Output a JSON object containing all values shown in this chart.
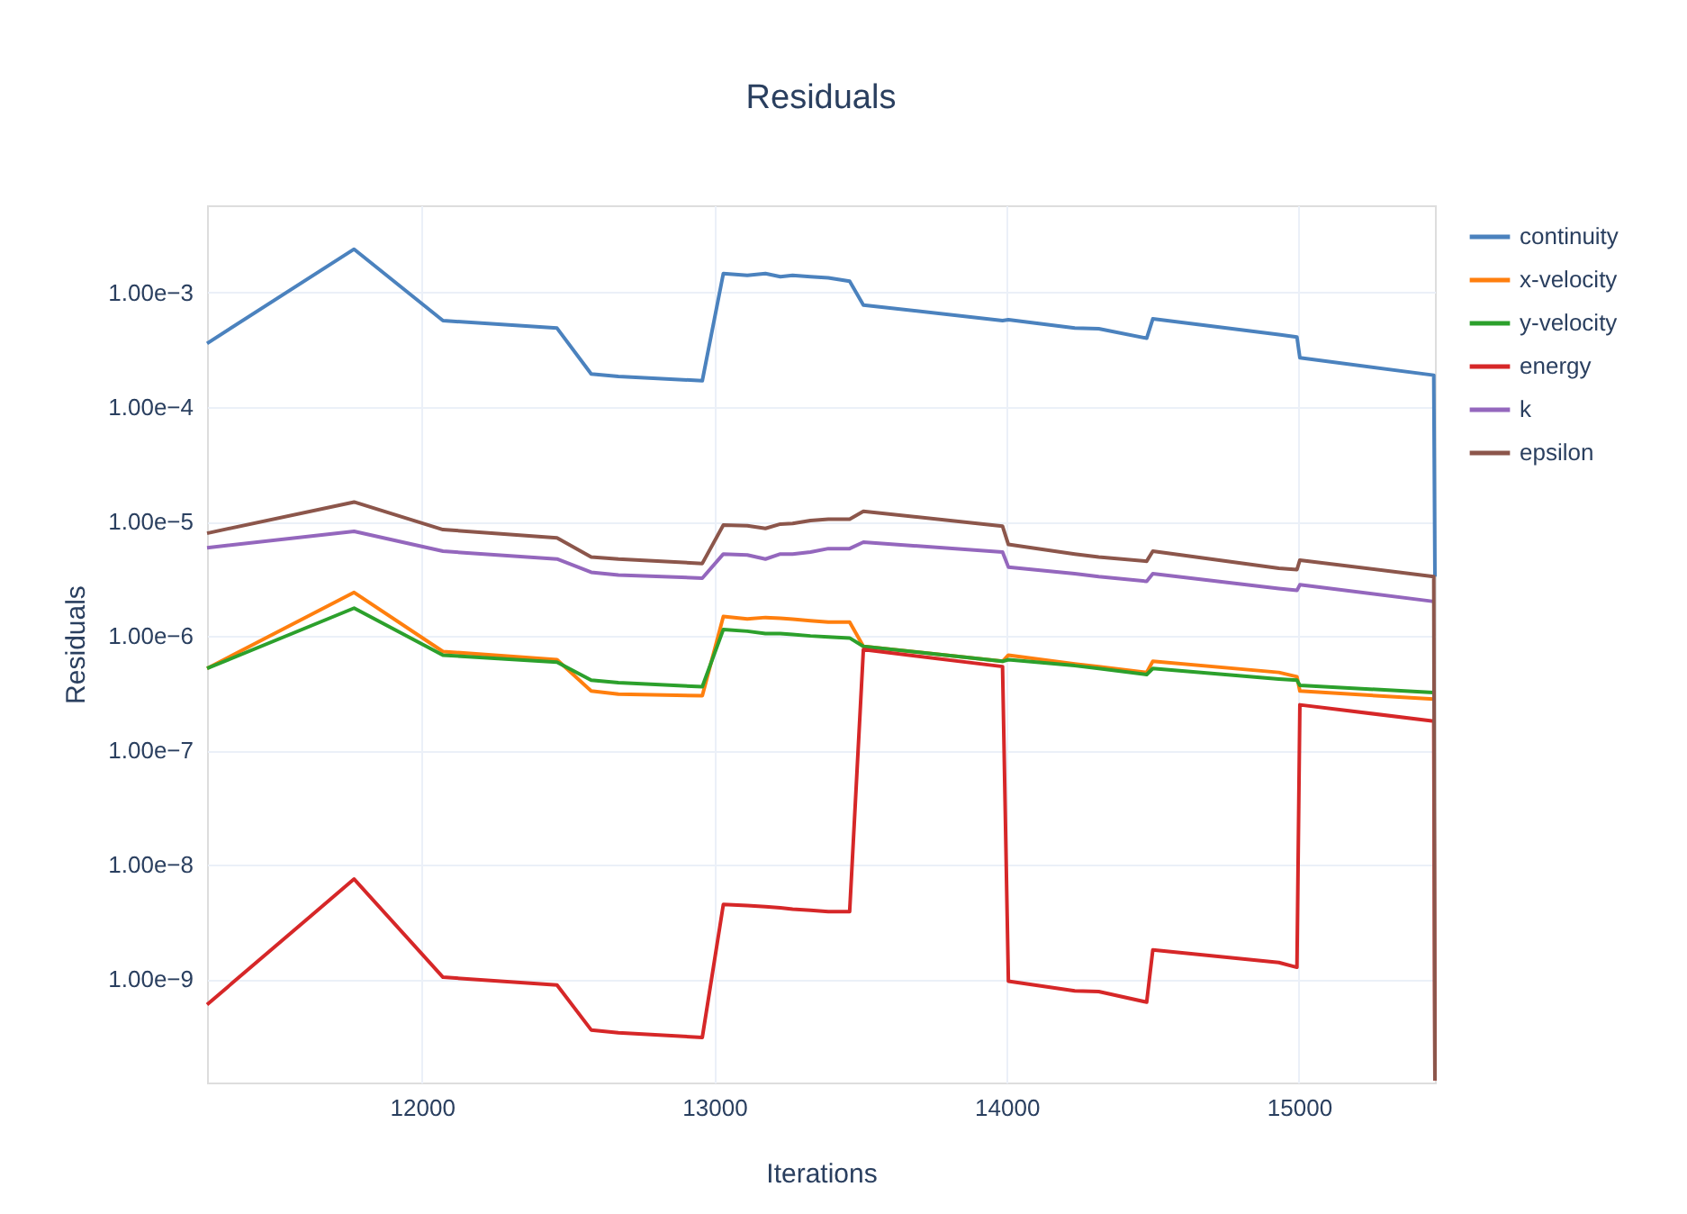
{
  "chart_data": {
    "type": "line",
    "title": "Residuals",
    "xlabel": "Iterations",
    "ylabel": "Residuals",
    "x": [
      11265,
      11768,
      12072,
      12462,
      12579,
      12672,
      12959,
      13031,
      13113,
      13175,
      13226,
      13268,
      13329,
      13390,
      13463,
      13510,
      13986,
      14006,
      14233,
      14315,
      14479,
      14500,
      14931,
      14993,
      15003,
      15461,
      15465
    ],
    "series": [
      {
        "name": "continuity",
        "color": "#4b82be",
        "values": [
          0.00036,
          0.0024,
          0.00057,
          0.00049,
          0.000195,
          0.000185,
          0.00017,
          0.00147,
          0.00142,
          0.00147,
          0.00138,
          0.00142,
          0.00138,
          0.00135,
          0.00126,
          0.00078,
          0.00057,
          0.00058,
          0.00049,
          0.000485,
          0.0004,
          0.00059,
          0.00043,
          0.00041,
          0.00027,
          0.00019,
          3.3e-06
        ]
      },
      {
        "name": "x-velocity",
        "color": "#ff7f0e",
        "values": [
          5.2e-07,
          2.4e-06,
          7.3e-07,
          6.2e-07,
          3.3e-07,
          3.1e-07,
          3e-07,
          1.48e-06,
          1.41e-06,
          1.45e-06,
          1.43e-06,
          1.4e-06,
          1.36e-06,
          1.32e-06,
          1.32e-06,
          8.1e-07,
          6e-07,
          6.8e-07,
          5.7e-07,
          5.4e-07,
          4.8e-07,
          6e-07,
          4.8e-07,
          4.4e-07,
          3.3e-07,
          2.8e-07,
          null
        ]
      },
      {
        "name": "y-velocity",
        "color": "#2ca02c",
        "values": [
          5.2e-07,
          1.75e-06,
          6.8e-07,
          5.9e-07,
          4.1e-07,
          3.9e-07,
          3.6e-07,
          1.14e-06,
          1.1e-06,
          1.05e-06,
          1.05e-06,
          1.03e-06,
          1e-06,
          9.8e-07,
          9.6e-07,
          8.1e-07,
          6e-07,
          6.2e-07,
          5.5e-07,
          5.2e-07,
          4.6e-07,
          5.2e-07,
          4.2e-07,
          4.1e-07,
          3.7e-07,
          3.2e-07,
          null
        ]
      },
      {
        "name": "energy",
        "color": "#d62728",
        "values": [
          6e-10,
          7.5e-09,
          1.04e-09,
          8.9e-10,
          3.6e-10,
          3.4e-10,
          3.1e-10,
          4.5e-09,
          4.4e-09,
          4.3e-09,
          4.2e-09,
          4.1e-09,
          4e-09,
          3.9e-09,
          3.9e-09,
          7.6e-07,
          5.4e-07,
          9.6e-10,
          7.9e-10,
          7.8e-10,
          6.3e-10,
          1.8e-09,
          1.4e-09,
          1.27e-09,
          2.5e-07,
          1.8e-07,
          1.3e-10
        ]
      },
      {
        "name": "k",
        "color": "#9467bd",
        "values": [
          5.9e-06,
          8.2e-06,
          5.5e-06,
          4.7e-06,
          3.6e-06,
          3.4e-06,
          3.2e-06,
          5.2e-06,
          5.1e-06,
          4.7e-06,
          5.2e-06,
          5.2e-06,
          5.4e-06,
          5.8e-06,
          5.8e-06,
          6.6e-06,
          5.4e-06,
          4e-06,
          3.5e-06,
          3.3e-06,
          3e-06,
          3.5e-06,
          2.6e-06,
          2.5e-06,
          2.8e-06,
          2e-06,
          null
        ]
      },
      {
        "name": "epsilon",
        "color": "#8c564b",
        "values": [
          7.9e-06,
          1.48e-05,
          8.5e-06,
          7.2e-06,
          4.9e-06,
          4.7e-06,
          4.3e-06,
          9.3e-06,
          9.2e-06,
          8.7e-06,
          9.5e-06,
          9.6e-06,
          1.02e-05,
          1.05e-05,
          1.05e-05,
          1.23e-05,
          9.1e-06,
          6.3e-06,
          5.2e-06,
          4.9e-06,
          4.5e-06,
          5.5e-06,
          3.9e-06,
          3.8e-06,
          4.6e-06,
          3.3e-06,
          1.3e-10
        ]
      }
    ],
    "xlim": [
      11265,
      15465
    ],
    "xticks": [
      12000,
      13000,
      14000,
      15000
    ],
    "ylim": [
      1.25e-10,
      0.0058
    ],
    "log": true,
    "yticks": [
      {
        "value": 1e-09,
        "label": "1.00e−9"
      },
      {
        "value": 1e-08,
        "label": "1.00e−8"
      },
      {
        "value": 1e-07,
        "label": "1.00e−7"
      },
      {
        "value": 1e-06,
        "label": "1.00e−6"
      },
      {
        "value": 1e-05,
        "label": "1.00e−5"
      },
      {
        "value": 0.0001,
        "label": "1.00e−4"
      },
      {
        "value": 0.001,
        "label": "1.00e−3"
      }
    ],
    "grid": true,
    "legend": "top right",
    "line_style": "solid",
    "marker": "none"
  }
}
